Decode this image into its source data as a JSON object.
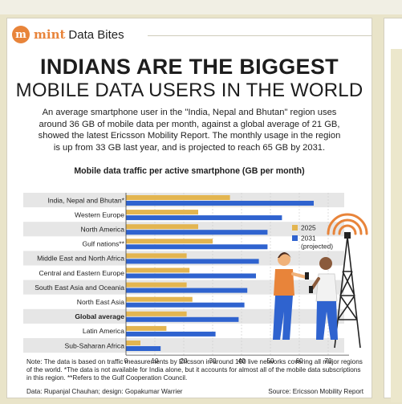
{
  "brand": {
    "logo_letter": "m",
    "name": "mint",
    "section": "Data Bites"
  },
  "headline": {
    "line1": "INDIANS ARE THE BIGGEST",
    "line2": "MOBILE DATA USERS IN THE WORLD"
  },
  "intro": "An average smartphone user in the \"India, Nepal and Bhutan\" region uses around 36 GB of mobile data per month, against a global average of 21 GB, showed the latest Ericsson Mobility Report. The monthly usage in the region is up from 33 GB last year, and is projected to reach 65 GB by 2031.",
  "note": "Note: The data is based on traffic measurements by Ericsson in around 100 live networks covering all major regions of the world. *The data is not available for India alone, but it accounts for almost all of the mobile data subscriptions in this region. **Refers to the Gulf Cooperation Council.",
  "credit": "Data: Rupanjal Chauhan; design: Gopakumar Warrier",
  "source": "Source: Ericsson Mobility Report",
  "colors": {
    "series_2025": "#e3b550",
    "series_2031": "#2f63cf",
    "band": "#e6e6e6",
    "brand": "#e8843a"
  },
  "chart_data": {
    "type": "bar",
    "title": "Mobile data traffic per active smartphone (GB per month)",
    "categories": [
      "India, Nepal and Bhutan*",
      "Western Europe",
      "North America",
      "Gulf nations**",
      "Middle East and North Africa",
      "Central and Eastern Europe",
      "South East Asia and Oceania",
      "North East Asia",
      "Global average",
      "Latin America",
      "Sub-Saharan Africa"
    ],
    "highlight_category": "Global average",
    "series": [
      {
        "name": "2025",
        "values": [
          36,
          25,
          25,
          30,
          21,
          22,
          21,
          23,
          21,
          14,
          5
        ]
      },
      {
        "name": "2031\n(projected)",
        "values": [
          65,
          54,
          49,
          49,
          46,
          45,
          42,
          41,
          39,
          31,
          12
        ]
      }
    ],
    "xlim": [
      0,
      75
    ],
    "xticks": [
      0,
      10,
      20,
      30,
      40,
      50,
      60,
      70
    ],
    "legend_position": "right"
  }
}
